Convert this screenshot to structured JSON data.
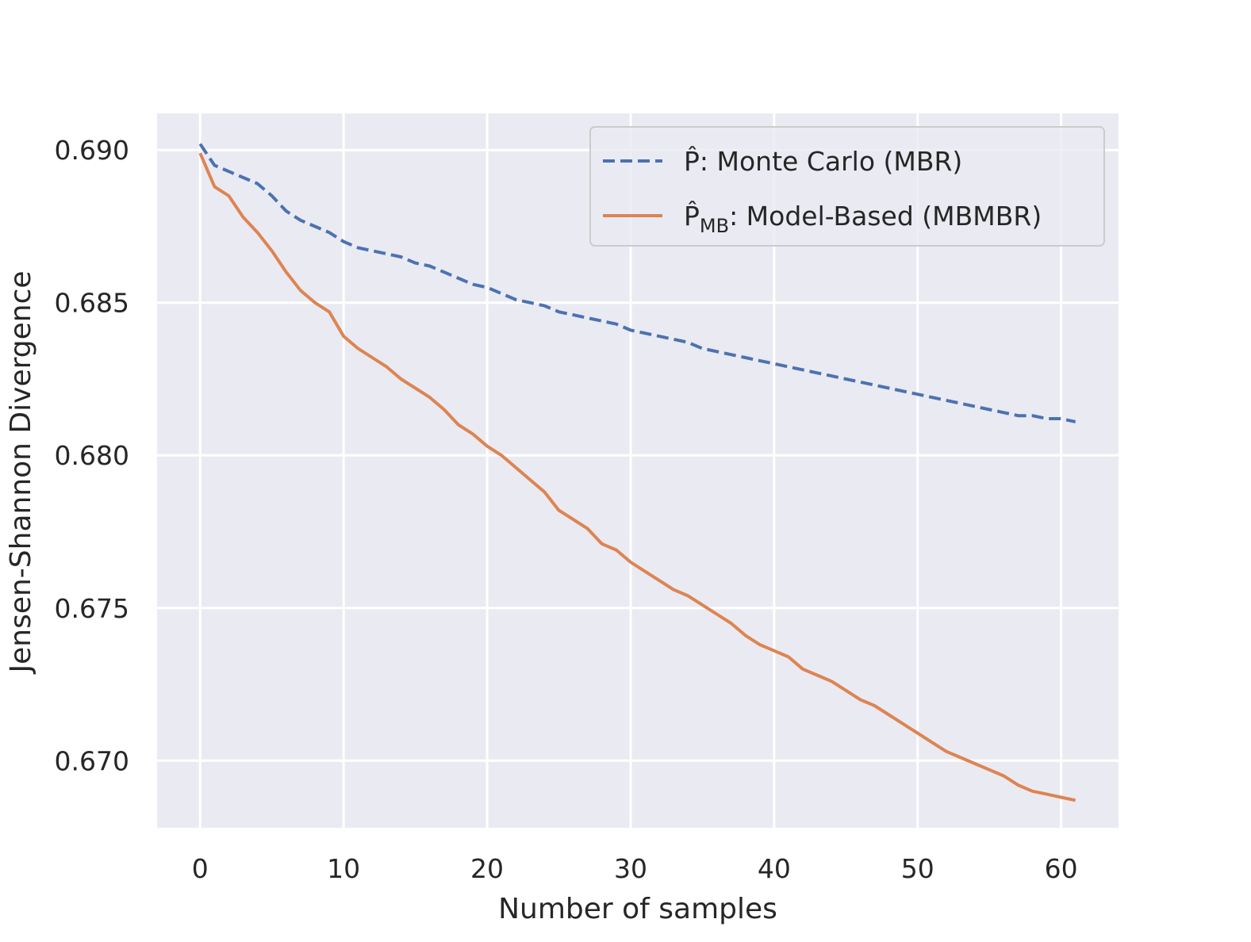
{
  "chart_data": {
    "type": "line",
    "title": "",
    "xlabel": "Number of samples",
    "ylabel": "Jensen-Shannon Divergence",
    "xlim": [
      -3,
      64
    ],
    "ylim": [
      0.6678,
      0.6912
    ],
    "xticks": [
      0,
      10,
      20,
      30,
      40,
      50,
      60
    ],
    "yticks": [
      0.67,
      0.675,
      0.68,
      0.685,
      0.69
    ],
    "xtick_labels": [
      "0",
      "10",
      "20",
      "30",
      "40",
      "50",
      "60"
    ],
    "ytick_labels": [
      "0.670",
      "0.675",
      "0.680",
      "0.685",
      "0.690"
    ],
    "grid": true,
    "legend_position": "top-right",
    "x": [
      0,
      1,
      2,
      3,
      4,
      5,
      6,
      7,
      8,
      9,
      10,
      11,
      12,
      13,
      14,
      15,
      16,
      17,
      18,
      19,
      20,
      21,
      22,
      23,
      24,
      25,
      26,
      27,
      28,
      29,
      30,
      31,
      32,
      33,
      34,
      35,
      36,
      37,
      38,
      39,
      40,
      41,
      42,
      43,
      44,
      45,
      46,
      47,
      48,
      49,
      50,
      51,
      52,
      53,
      54,
      55,
      56,
      57,
      58,
      59,
      60,
      61
    ],
    "series": [
      {
        "name": "P̂: Monte Carlo (MBR)",
        "name_main": "P̂",
        "name_sub": "",
        "name_rest": ": Monte Carlo (MBR)",
        "color": "#4c72b0",
        "dash": "dashed",
        "values": [
          0.6902,
          0.6895,
          0.6893,
          0.6891,
          0.6889,
          0.6885,
          0.688,
          0.6877,
          0.6875,
          0.6873,
          0.687,
          0.6868,
          0.6867,
          0.6866,
          0.6865,
          0.6863,
          0.6862,
          0.686,
          0.6858,
          0.6856,
          0.6855,
          0.6853,
          0.6851,
          0.685,
          0.6849,
          0.6847,
          0.6846,
          0.6845,
          0.6844,
          0.6843,
          0.6841,
          0.684,
          0.6839,
          0.6838,
          0.6837,
          0.6835,
          0.6834,
          0.6833,
          0.6832,
          0.6831,
          0.683,
          0.6829,
          0.6828,
          0.6827,
          0.6826,
          0.6825,
          0.6824,
          0.6823,
          0.6822,
          0.6821,
          0.682,
          0.6819,
          0.6818,
          0.6817,
          0.6816,
          0.6815,
          0.6814,
          0.6813,
          0.6813,
          0.6812,
          0.6812,
          0.6811
        ]
      },
      {
        "name": "P̂MB: Model-Based (MBMBR)",
        "name_main": "P̂",
        "name_sub": "MB",
        "name_rest": ": Model-Based (MBMBR)",
        "color": "#dd8452",
        "dash": "solid",
        "values": [
          0.6899,
          0.6888,
          0.6885,
          0.6878,
          0.6873,
          0.6867,
          0.686,
          0.6854,
          0.685,
          0.6847,
          0.6839,
          0.6835,
          0.6832,
          0.6829,
          0.6825,
          0.6822,
          0.6819,
          0.6815,
          0.681,
          0.6807,
          0.6803,
          0.68,
          0.6796,
          0.6792,
          0.6788,
          0.6782,
          0.6779,
          0.6776,
          0.6771,
          0.6769,
          0.6765,
          0.6762,
          0.6759,
          0.6756,
          0.6754,
          0.6751,
          0.6748,
          0.6745,
          0.6741,
          0.6738,
          0.6736,
          0.6734,
          0.673,
          0.6728,
          0.6726,
          0.6723,
          0.672,
          0.6718,
          0.6715,
          0.6712,
          0.6709,
          0.6706,
          0.6703,
          0.6701,
          0.6699,
          0.6697,
          0.6695,
          0.6692,
          0.669,
          0.6689,
          0.6688,
          0.6687
        ]
      }
    ]
  }
}
